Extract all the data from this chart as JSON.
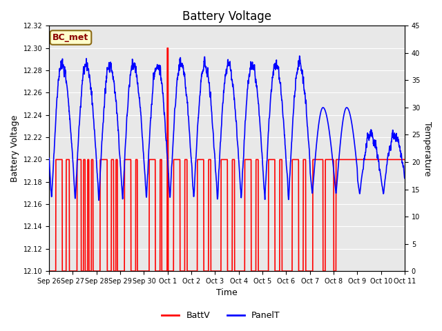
{
  "title": "Battery Voltage",
  "xlabel": "Time",
  "ylabel_left": "Battery Voltage",
  "ylabel_right": "Temperature",
  "annotation": "BC_met",
  "annotation_bg": "#ffffcc",
  "annotation_fg": "#8b0000",
  "annotation_border": "#8b6914",
  "ylim_left": [
    12.1,
    12.32
  ],
  "ylim_right": [
    0,
    45
  ],
  "yticks_left": [
    12.1,
    12.12,
    12.14,
    12.16,
    12.18,
    12.2,
    12.22,
    12.24,
    12.26,
    12.28,
    12.3,
    12.32
  ],
  "yticks_right": [
    0,
    5,
    10,
    15,
    20,
    25,
    30,
    35,
    40,
    45
  ],
  "xtick_labels": [
    "Sep 26",
    "Sep 27",
    "Sep 28",
    "Sep 29",
    "Sep 30",
    "Oct 1",
    "Oct 2",
    "Oct 3",
    "Oct 4",
    "Oct 5",
    "Oct 6",
    "Oct 7",
    "Oct 8",
    "Oct 9",
    "Oct 10",
    "Oct 11"
  ],
  "batt_color": "#ff0000",
  "panel_color": "#0000ff",
  "bg_color": "#e8e8e8",
  "legend_batt": "BattV",
  "legend_panel": "PanelT",
  "n_days": 15,
  "batt_high": 12.2,
  "batt_low": 12.1,
  "batt_spike": 12.3,
  "temp_high_early": 40,
  "temp_low_early": 12,
  "temp_high_late": 30,
  "temp_low_late": 14
}
